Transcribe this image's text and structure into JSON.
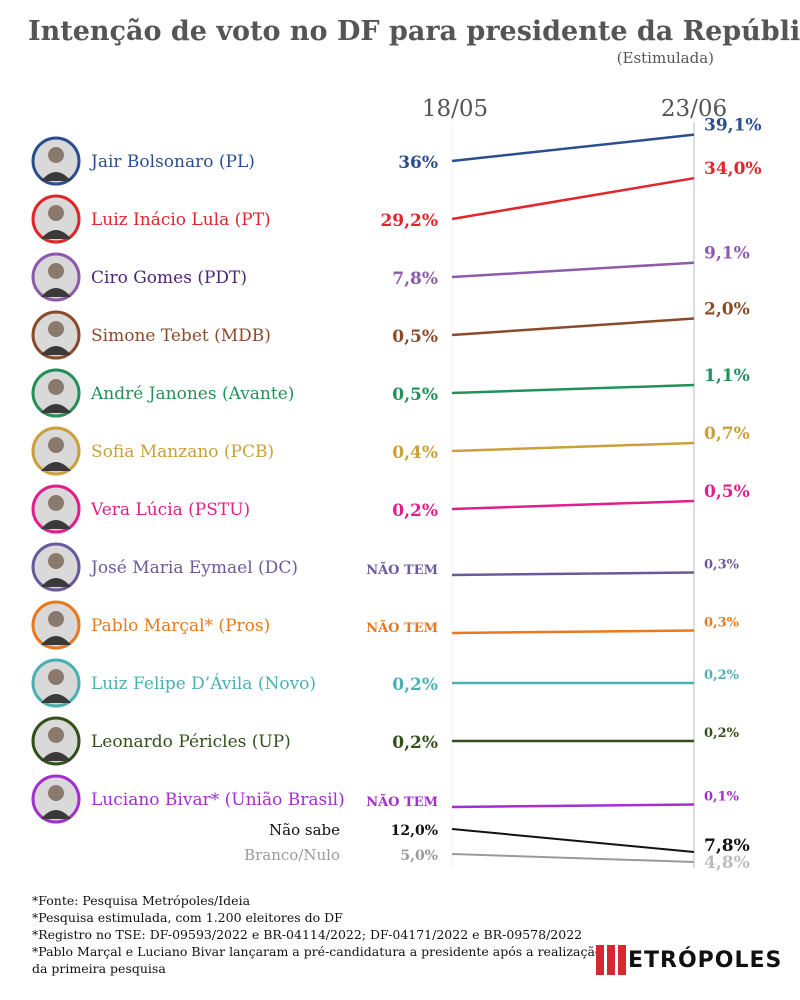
{
  "title": "Intenção de voto no DF para presidente da República",
  "subtitle": "(Estimulada)",
  "dates": [
    "18/05",
    "23/06"
  ],
  "chart_data": {
    "type": "line",
    "title": "Intenção de voto no DF para presidente da República",
    "subtitle": "(Estimulada)",
    "x": [
      "18/05",
      "23/06"
    ],
    "grid": false,
    "series": [
      {
        "name": "Jair Bolsonaro (PL)",
        "values": [
          36,
          39.1
        ],
        "labels": [
          "36%",
          "39,1%"
        ],
        "color": "#2b4e8f",
        "photo": true
      },
      {
        "name": "Luiz Inácio Lula (PT)",
        "values": [
          29.2,
          34.0
        ],
        "labels": [
          "29,2%",
          "34,0%"
        ],
        "color": "#e2242b",
        "photo": true
      },
      {
        "name": "Ciro Gomes (PDT)",
        "values": [
          7.8,
          9.1
        ],
        "labels": [
          "7,8%",
          "9,1%"
        ],
        "color": "#8d5bab",
        "name_color": "#4b2578",
        "photo": true
      },
      {
        "name": "Simone Tebet (MDB)",
        "values": [
          0.5,
          2.0
        ],
        "labels": [
          "0,5%",
          "2,0%"
        ],
        "color": "#8a4b2a",
        "photo": true
      },
      {
        "name": "André Janones (Avante)",
        "values": [
          0.5,
          1.1
        ],
        "labels": [
          "0,5%",
          "1,1%"
        ],
        "color": "#23905a",
        "photo": true
      },
      {
        "name": "Sofia Manzano (PCB)",
        "values": [
          0.4,
          0.7
        ],
        "labels": [
          "0,4%",
          "0,7%"
        ],
        "color": "#c9a03c",
        "photo": true
      },
      {
        "name": "Vera Lúcia (PSTU)",
        "values": [
          0.2,
          0.5
        ],
        "labels": [
          "0,2%",
          "0,5%"
        ],
        "color": "#e11f8b",
        "photo": true
      },
      {
        "name": "José Maria Eymael (DC)",
        "values": [
          null,
          0.3
        ],
        "labels": [
          "NÃO TEM",
          "0,3%"
        ],
        "color": "#6a5a9c",
        "photo": true
      },
      {
        "name": "Pablo Marçal* (Pros)",
        "values": [
          null,
          0.3
        ],
        "labels": [
          "NÃO TEM",
          "0,3%"
        ],
        "color": "#e8791e",
        "photo": true
      },
      {
        "name": "Luiz Felipe D’Ávila (Novo)",
        "values": [
          0.2,
          0.2
        ],
        "labels": [
          "0,2%",
          "0,2%"
        ],
        "color": "#4ab0b4",
        "photo": true
      },
      {
        "name": "Leonardo Péricles (UP)",
        "values": [
          0.2,
          0.2
        ],
        "labels": [
          "0,2%",
          "0,2%"
        ],
        "color": "#33501a",
        "photo": true
      },
      {
        "name": "Luciano Bivar* (União Brasil)",
        "values": [
          null,
          0.1
        ],
        "labels": [
          "NÃO TEM",
          "0,1%"
        ],
        "color": "#a32fd0",
        "photo": true
      },
      {
        "name": "Não sabe",
        "values": [
          12.0,
          7.8
        ],
        "labels": [
          "12,0%",
          "7,8%"
        ],
        "color": "#111111",
        "photo": false
      },
      {
        "name": "Branco/Nulo",
        "values": [
          5.0,
          4.8
        ],
        "labels": [
          "5,0%",
          "4,8%"
        ],
        "color": "#9a9a9a",
        "photo": false
      }
    ]
  },
  "footer": {
    "lines": [
      "*Fonte: Pesquisa Metrópoles/Ideia",
      "*Pesquisa estimulada, com 1.200 eleitores do DF",
      "*Registro no TSE: DF-09593/2022 e BR-04114/2022; DF-04171/2022 e BR-09578/2022",
      "*Pablo Marçal e Luciano Bivar lançaram a pré-candidatura a presidente após a realização",
      "da primeira pesquisa"
    ]
  },
  "logo": {
    "text": "ETRÓPOLES",
    "brand": "Metrópoles",
    "color": "#d6282f"
  }
}
